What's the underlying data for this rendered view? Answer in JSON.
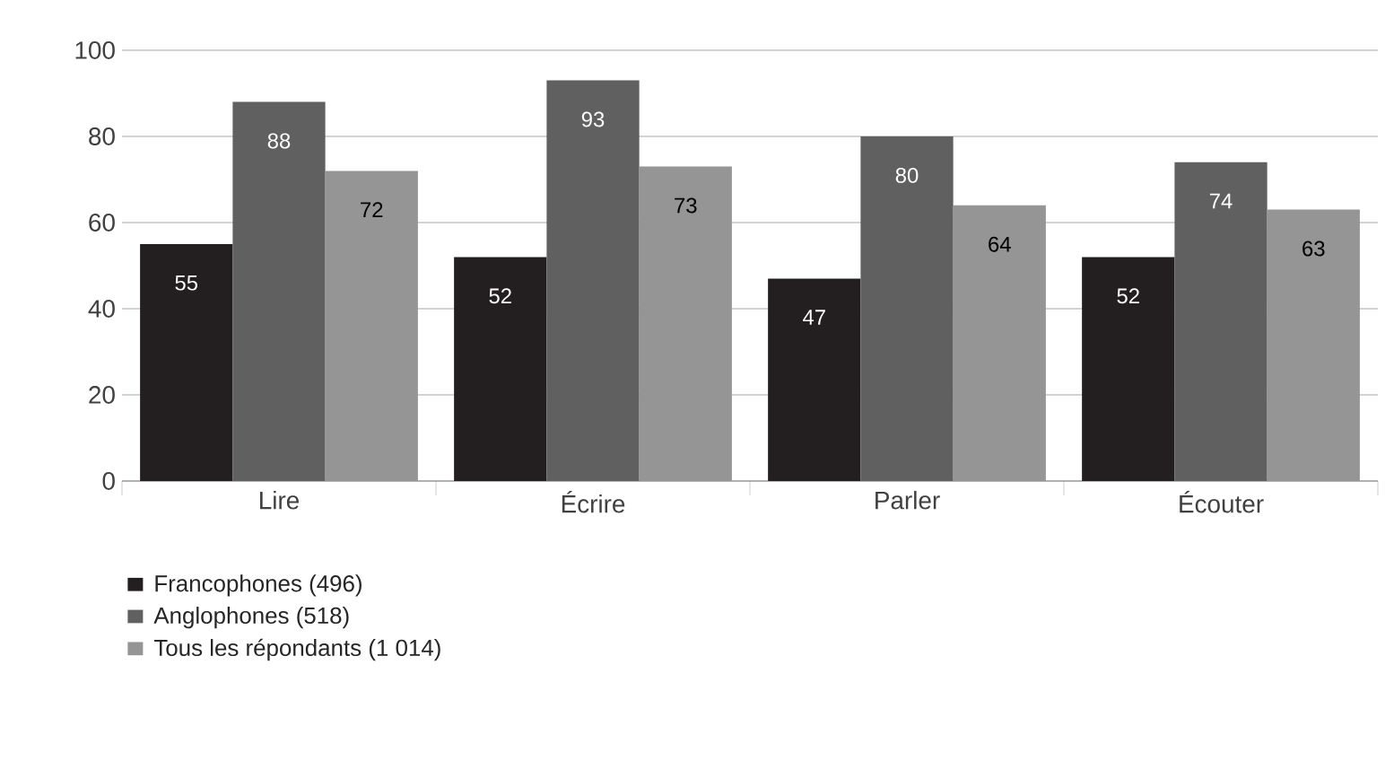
{
  "chart_data": {
    "type": "bar",
    "categories": [
      "Lire",
      "Écrire",
      "Parler",
      "Écouter"
    ],
    "series": [
      {
        "name": "Francophones (496)",
        "color": "#231f20",
        "values": [
          55,
          52,
          47,
          52
        ]
      },
      {
        "name": "Anglophones (518)",
        "color": "#606060",
        "values": [
          88,
          93,
          80,
          74
        ]
      },
      {
        "name": "Tous les répondants (1 014)",
        "color": "#959595",
        "values": [
          72,
          73,
          64,
          63
        ]
      }
    ],
    "ylim": [
      0,
      100
    ],
    "yticks": [
      0,
      20,
      40,
      60,
      80,
      100
    ],
    "grid": "y",
    "legend": "bottom",
    "data_labels": true
  }
}
